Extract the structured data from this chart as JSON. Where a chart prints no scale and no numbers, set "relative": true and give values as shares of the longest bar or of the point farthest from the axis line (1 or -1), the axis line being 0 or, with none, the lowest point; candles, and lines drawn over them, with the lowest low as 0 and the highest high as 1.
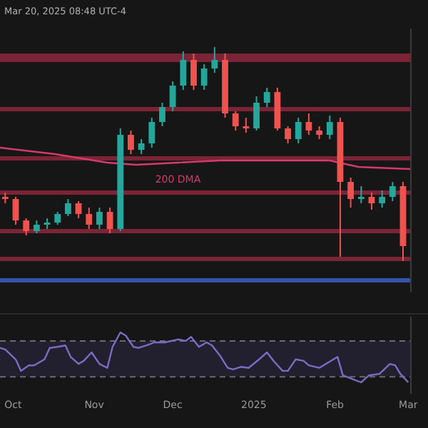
{
  "chart_data": [
    {
      "type": "candlestick",
      "relative": true,
      "tick_labels": false,
      "annotations": [
        "Mar 20, 2025 08:48 UTC-4"
      ],
      "xlim": [
        "2024-09-26",
        "2025-03-02"
      ],
      "x": [
        "2024-09-28",
        "2024-10-02",
        "2024-10-06",
        "2024-10-10",
        "2024-10-14",
        "2024-10-18",
        "2024-10-22",
        "2024-10-26",
        "2024-10-30",
        "2024-11-03",
        "2024-11-07",
        "2024-11-11",
        "2024-11-15",
        "2024-11-19",
        "2024-11-23",
        "2024-11-27",
        "2024-12-01",
        "2024-12-05",
        "2024-12-09",
        "2024-12-13",
        "2024-12-17",
        "2024-12-21",
        "2024-12-25",
        "2024-12-29",
        "2025-01-02",
        "2025-01-06",
        "2025-01-10",
        "2025-01-14",
        "2025-01-18",
        "2025-01-22",
        "2025-01-26",
        "2025-01-30",
        "2025-02-03",
        "2025-02-07",
        "2025-02-11",
        "2025-02-15",
        "2025-02-19",
        "2025-02-23",
        "2025-02-27"
      ],
      "ohlc": [
        [
          0.3,
          0.32,
          0.27,
          0.29
        ],
        [
          0.29,
          0.3,
          0.17,
          0.19
        ],
        [
          0.19,
          0.2,
          0.12,
          0.14
        ],
        [
          0.14,
          0.19,
          0.13,
          0.17
        ],
        [
          0.17,
          0.2,
          0.15,
          0.18
        ],
        [
          0.18,
          0.23,
          0.17,
          0.22
        ],
        [
          0.22,
          0.29,
          0.21,
          0.27
        ],
        [
          0.27,
          0.28,
          0.2,
          0.22
        ],
        [
          0.22,
          0.25,
          0.15,
          0.17
        ],
        [
          0.17,
          0.25,
          0.15,
          0.23
        ],
        [
          0.23,
          0.25,
          0.13,
          0.15
        ],
        [
          0.15,
          0.62,
          0.14,
          0.59
        ],
        [
          0.59,
          0.61,
          0.5,
          0.52
        ],
        [
          0.52,
          0.57,
          0.5,
          0.55
        ],
        [
          0.55,
          0.67,
          0.53,
          0.65
        ],
        [
          0.65,
          0.74,
          0.63,
          0.72
        ],
        [
          0.72,
          0.84,
          0.7,
          0.82
        ],
        [
          0.82,
          0.98,
          0.8,
          0.94
        ],
        [
          0.94,
          0.97,
          0.8,
          0.82
        ],
        [
          0.82,
          0.92,
          0.8,
          0.9
        ],
        [
          0.9,
          1,
          0.88,
          0.94
        ],
        [
          0.94,
          0.97,
          0.67,
          0.69
        ],
        [
          0.69,
          0.7,
          0.61,
          0.63
        ],
        [
          0.63,
          0.67,
          0.6,
          0.62
        ],
        [
          0.62,
          0.77,
          0.61,
          0.74
        ],
        [
          0.74,
          0.81,
          0.72,
          0.79
        ],
        [
          0.79,
          0.81,
          0.61,
          0.62
        ],
        [
          0.62,
          0.63,
          0.55,
          0.57
        ],
        [
          0.57,
          0.67,
          0.55,
          0.65
        ],
        [
          0.65,
          0.69,
          0.59,
          0.61
        ],
        [
          0.61,
          0.63,
          0.57,
          0.59
        ],
        [
          0.59,
          0.68,
          0.57,
          0.65
        ],
        [
          0.65,
          0.67,
          0.02,
          0.37
        ],
        [
          0.37,
          0.39,
          0.25,
          0.29
        ],
        [
          0.29,
          0.35,
          0.27,
          0.3
        ],
        [
          0.3,
          0.32,
          0.24,
          0.27
        ],
        [
          0.27,
          0.33,
          0.25,
          0.3
        ],
        [
          0.3,
          0.37,
          0.28,
          0.35
        ],
        [
          0.35,
          0.37,
          0,
          0.07
        ]
      ],
      "series": [
        {
          "type": "line",
          "name": "200 DMA",
          "color": "#d63a6a",
          "x": [
            "2024-09-26",
            "2024-10-17",
            "2024-11-06",
            "2024-11-17",
            "2024-12-03",
            "2024-12-19",
            "2025-01-09",
            "2025-01-30",
            "2025-02-10",
            "2025-03-02"
          ],
          "values": [
            0.53,
            0.5,
            0.46,
            0.45,
            0.46,
            0.47,
            0.47,
            0.47,
            0.44,
            0.43
          ]
        }
      ],
      "bands": [
        {
          "axis": "y",
          "from": 0.93,
          "to": 0.97,
          "color": "#7a2436"
        },
        {
          "axis": "y",
          "from": 0.7,
          "to": 0.72,
          "color": "#7a2436"
        },
        {
          "axis": "y",
          "from": 0.47,
          "to": 0.49,
          "color": "#7a2436"
        },
        {
          "axis": "y",
          "from": 0.31,
          "to": 0.33,
          "color": "#7a2436"
        },
        {
          "axis": "y",
          "from": 0.13,
          "to": 0.15,
          "color": "#7a2436"
        },
        {
          "axis": "y",
          "from": 0.0,
          "to": 0.02,
          "color": "#7a2436"
        },
        {
          "axis": "y",
          "from": -0.1,
          "to": -0.08,
          "color": "#3553a8"
        }
      ]
    },
    {
      "type": "line",
      "relative": true,
      "tick_labels": "x",
      "xlim": [
        "2024-09-26",
        "2025-03-02"
      ],
      "xticks": [
        {
          "value": "2024-10-01",
          "label": "Oct"
        },
        {
          "value": "2024-11-01",
          "label": "Nov"
        },
        {
          "value": "2024-12-01",
          "label": "Dec"
        },
        {
          "value": "2025-01-01",
          "label": "2025"
        },
        {
          "value": "2025-02-01",
          "label": "Feb"
        },
        {
          "value": "2025-03-01",
          "label": "Mar"
        }
      ],
      "series": [
        {
          "color": "#7e6bc4",
          "x": [
            "2024-09-26",
            "2024-09-28",
            "2024-10-02",
            "2024-10-04",
            "2024-10-07",
            "2024-10-09",
            "2024-10-13",
            "2024-10-15",
            "2024-10-18",
            "2024-10-21",
            "2024-10-23",
            "2024-10-26",
            "2024-10-28",
            "2024-10-31",
            "2024-11-03",
            "2024-11-06",
            "2024-11-08",
            "2024-11-11",
            "2024-11-13",
            "2024-11-16",
            "2024-11-18",
            "2024-11-21",
            "2024-11-24",
            "2024-11-28",
            "2024-12-03",
            "2024-12-06",
            "2024-12-08",
            "2024-12-11",
            "2024-12-14",
            "2024-12-16",
            "2024-12-19",
            "2024-12-22",
            "2024-12-24",
            "2024-12-27",
            "2024-12-30",
            "2025-01-03",
            "2025-01-06",
            "2025-01-09",
            "2025-01-12",
            "2025-01-14",
            "2025-01-17",
            "2025-01-20",
            "2025-01-22",
            "2025-01-26",
            "2025-02-02",
            "2025-02-04",
            "2025-02-08",
            "2025-02-11",
            "2025-02-14",
            "2025-02-18",
            "2025-02-22",
            "2025-02-24",
            "2025-02-26",
            "2025-03-01"
          ],
          "values": [
            0.69,
            0.66,
            0.46,
            0.23,
            0.34,
            0.34,
            0.46,
            0.69,
            0.71,
            0.74,
            0.51,
            0.37,
            0.43,
            0.6,
            0.37,
            0.29,
            0.71,
            1,
            0.94,
            0.71,
            0.69,
            0.74,
            0.8,
            0.8,
            0.86,
            0.83,
            0.91,
            0.71,
            0.8,
            0.74,
            0.54,
            0.29,
            0.26,
            0.31,
            0.29,
            0.46,
            0.6,
            0.4,
            0.23,
            0.23,
            0.46,
            0.43,
            0.34,
            0.29,
            0.51,
            0.14,
            0.06,
            0,
            0.14,
            0.17,
            0.37,
            0.34,
            0.17,
            0
          ]
        }
      ],
      "ref_lines": [
        {
          "axis": "y",
          "value": 0.83,
          "line_style": "dashed",
          "color": "#6a6a78"
        },
        {
          "axis": "y",
          "value": 0.11,
          "line_style": "dashed",
          "color": "#6a6a78"
        }
      ],
      "bands": [
        {
          "axis": "y",
          "from": 0.11,
          "to": 0.83,
          "color": "#221f2e"
        }
      ]
    }
  ]
}
